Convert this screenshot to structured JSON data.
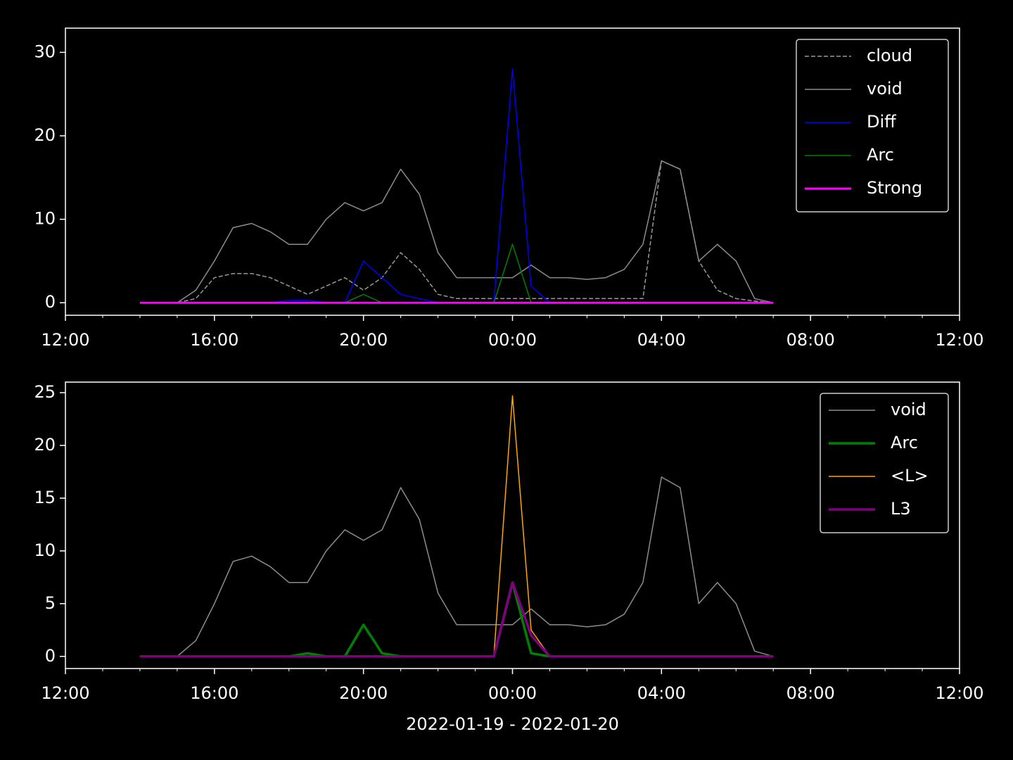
{
  "chart_data": [
    {
      "type": "line",
      "x": [
        "14:00",
        "14:30",
        "15:00",
        "15:30",
        "16:00",
        "16:30",
        "17:00",
        "17:30",
        "18:00",
        "18:30",
        "19:00",
        "19:30",
        "20:00",
        "20:30",
        "21:00",
        "21:30",
        "22:00",
        "22:30",
        "23:00",
        "23:30",
        "00:00",
        "00:30",
        "01:00",
        "01:30",
        "02:00",
        "02:30",
        "03:00",
        "03:30",
        "04:00",
        "04:30",
        "05:00",
        "05:30",
        "06:00",
        "06:30",
        "07:00"
      ],
      "xlim": [
        "12:00",
        "12:00"
      ],
      "xticks": [
        "12:00",
        "16:00",
        "20:00",
        "00:00",
        "04:00",
        "08:00",
        "12:00"
      ],
      "ylim": [
        -1.5,
        32.9
      ],
      "yticks": [
        0,
        10,
        20,
        30
      ],
      "legend": "upper-right",
      "series": [
        {
          "name": "cloud",
          "color": "#999999",
          "linestyle": "dashed",
          "linewidth": 1.5,
          "values": [
            0,
            0,
            0,
            0.5,
            3,
            3.5,
            3.5,
            3,
            2,
            1,
            2,
            3,
            1.5,
            3,
            6,
            4,
            1,
            0.5,
            0.5,
            0.5,
            0.5,
            0.5,
            0.5,
            0.5,
            0.5,
            0.5,
            0.5,
            0.5,
            17,
            16,
            5,
            1.5,
            0.5,
            0.2,
            0
          ]
        },
        {
          "name": "void",
          "color": "#8c8c8c",
          "linestyle": "solid",
          "linewidth": 1.5,
          "values": [
            0,
            0,
            0,
            1.5,
            5,
            9,
            9.5,
            8.5,
            7,
            7,
            10,
            12,
            11,
            12,
            16,
            13,
            6,
            3,
            3,
            3,
            3,
            4.5,
            3,
            3,
            2.8,
            3,
            4,
            7,
            17,
            16,
            5,
            7,
            5,
            0.5,
            0
          ]
        },
        {
          "name": "Diff",
          "color": "#0000ff",
          "linestyle": "solid",
          "linewidth": 1.5,
          "values": [
            0,
            0,
            0,
            0,
            0,
            0,
            0,
            0,
            0.3,
            0.3,
            0,
            0,
            5,
            3,
            1,
            0.5,
            0,
            0,
            0,
            0,
            28,
            2,
            0,
            0,
            0,
            0,
            0,
            0,
            0,
            0,
            0,
            0,
            0,
            0,
            0
          ]
        },
        {
          "name": "Arc",
          "color": "#008000",
          "linestyle": "solid",
          "linewidth": 1.5,
          "values": [
            0,
            0,
            0,
            0,
            0,
            0,
            0,
            0,
            0,
            0,
            0,
            0,
            1,
            0,
            0,
            0,
            0,
            0,
            0,
            0,
            7,
            0,
            0,
            0,
            0,
            0,
            0,
            0,
            0,
            0,
            0,
            0,
            0,
            0,
            0
          ]
        },
        {
          "name": "Strong",
          "color": "#ff00ff",
          "linestyle": "solid",
          "linewidth": 3,
          "values": [
            0,
            0,
            0,
            0,
            0,
            0,
            0,
            0,
            0,
            0,
            0,
            0,
            0,
            0,
            0,
            0,
            0,
            0,
            0,
            0,
            0,
            0,
            0,
            0,
            0,
            0,
            0,
            0,
            0,
            0,
            0,
            0,
            0,
            0,
            0
          ]
        }
      ]
    },
    {
      "type": "line",
      "x": [
        "14:00",
        "14:30",
        "15:00",
        "15:30",
        "16:00",
        "16:30",
        "17:00",
        "17:30",
        "18:00",
        "18:30",
        "19:00",
        "19:30",
        "20:00",
        "20:30",
        "21:00",
        "21:30",
        "22:00",
        "22:30",
        "23:00",
        "23:30",
        "00:00",
        "00:30",
        "01:00",
        "01:30",
        "02:00",
        "02:30",
        "03:00",
        "03:30",
        "04:00",
        "04:30",
        "05:00",
        "05:30",
        "06:00",
        "06:30",
        "07:00"
      ],
      "xlim": [
        "12:00",
        "12:00"
      ],
      "xticks": [
        "12:00",
        "16:00",
        "20:00",
        "00:00",
        "04:00",
        "08:00",
        "12:00"
      ],
      "xlabel": "2022-01-19 - 2022-01-20",
      "ylim": [
        -1.15,
        26
      ],
      "yticks": [
        0,
        5,
        10,
        15,
        20,
        25
      ],
      "legend": "upper-right",
      "series": [
        {
          "name": "void",
          "color": "#8c8c8c",
          "linestyle": "solid",
          "linewidth": 1.5,
          "values": [
            0,
            0,
            0,
            1.5,
            5,
            9,
            9.5,
            8.5,
            7,
            7,
            10,
            12,
            11,
            12,
            16,
            13,
            6,
            3,
            3,
            3,
            3,
            4.5,
            3,
            3,
            2.8,
            3,
            4,
            7,
            17,
            16,
            5,
            7,
            5,
            0.5,
            0
          ]
        },
        {
          "name": "Arc",
          "color": "#008000",
          "linestyle": "solid",
          "linewidth": 3.5,
          "values": [
            0,
            0,
            0,
            0,
            0,
            0,
            0,
            0,
            0,
            0.3,
            0,
            0,
            3,
            0.3,
            0,
            0,
            0,
            0,
            0,
            0,
            7,
            0.3,
            0,
            0,
            0,
            0,
            0,
            0,
            0,
            0,
            0,
            0,
            0,
            0,
            0
          ]
        },
        {
          "name": "<L>",
          "color": "#ffa500",
          "linestyle": "solid",
          "linewidth": 1.5,
          "values": [
            0,
            0,
            0,
            0,
            0,
            0,
            0,
            0,
            0,
            0,
            0,
            0,
            0,
            0,
            0,
            0,
            0,
            0,
            0,
            0,
            24.7,
            2.5,
            0,
            0,
            0,
            0,
            0,
            0,
            0,
            0,
            0,
            0,
            0,
            0,
            0
          ]
        },
        {
          "name": "L3",
          "color": "#800080",
          "linestyle": "solid",
          "linewidth": 3.5,
          "values": [
            0,
            0,
            0,
            0,
            0,
            0,
            0,
            0,
            0,
            0,
            0,
            0,
            0,
            0,
            0,
            0,
            0,
            0,
            0,
            0,
            7,
            2,
            0,
            0,
            0,
            0,
            0,
            0,
            0,
            0,
            0,
            0,
            0,
            0,
            0
          ]
        }
      ]
    }
  ]
}
